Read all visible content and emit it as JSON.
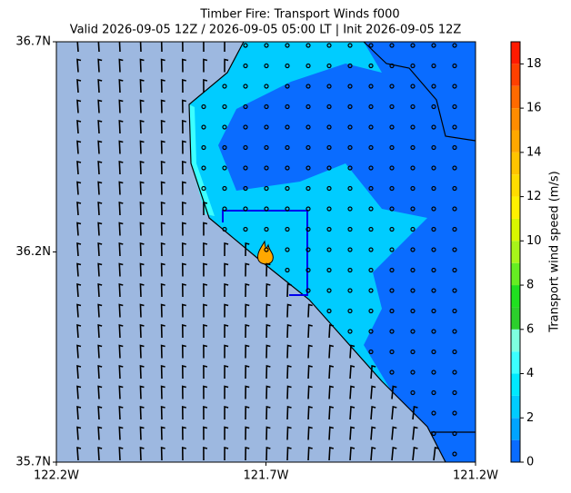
{
  "title": "Timber Fire: Transport Winds f000",
  "subtitle": "Valid 2026-09-05 12Z / 2026-09-05 05:00 LT | Init 2026-09-05 12Z",
  "map": {
    "xticks": [
      {
        "value": -122.2,
        "label": "122.2W"
      },
      {
        "value": -121.7,
        "label": "121.7W"
      },
      {
        "value": -121.2,
        "label": "121.2W"
      }
    ],
    "yticks": [
      {
        "value": 36.7,
        "label": "36.7N"
      },
      {
        "value": 36.2,
        "label": "36.2N"
      },
      {
        "value": 35.7,
        "label": "35.7N"
      }
    ],
    "xlim": [
      -122.2,
      -121.2
    ],
    "ylim": [
      35.7,
      36.7
    ]
  },
  "colorbar": {
    "label": "Transport wind speed (m/s)",
    "lim": [
      0,
      19
    ],
    "ticks": [
      0,
      2,
      4,
      6,
      8,
      10,
      12,
      14,
      16,
      18
    ],
    "colors": [
      "#0a6cff",
      "#00a4ff",
      "#00ccff",
      "#00eaff",
      "#3cffff",
      "#7effe0",
      "#2ccf2c",
      "#20e020",
      "#66ee22",
      "#a8f51a",
      "#d8f800",
      "#fff200",
      "#ffdc00",
      "#ffc400",
      "#ffa800",
      "#ff8c00",
      "#ff6a00",
      "#ff4000",
      "#ff1a00"
    ]
  }
}
